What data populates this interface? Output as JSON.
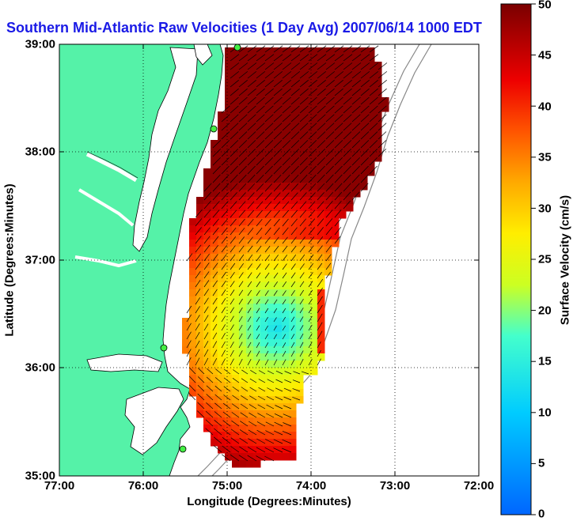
{
  "title": "Southern Mid-Atlantic Raw Velocities (1 Day Avg) 2007/06/14 1000 EDT",
  "axes": {
    "xlabel": "Longitude (Degrees:Minutes)",
    "ylabel": "Latitude (Degrees:Minutes)",
    "x_ticks": [
      "77:00",
      "76:00",
      "75:00",
      "74:00",
      "73:00",
      "72:00"
    ],
    "y_ticks": [
      "39:00",
      "38:00",
      "37:00",
      "36:00",
      "35:00"
    ]
  },
  "colorbar": {
    "label": "Surface Velocity (cm/s)",
    "ticks": [
      "50",
      "45",
      "40",
      "35",
      "30",
      "25",
      "20",
      "15",
      "10",
      "5",
      "0"
    ],
    "min": 0,
    "max": 50
  },
  "colors": {
    "land": "#55f2a8",
    "title": "#1a1ae6",
    "station": "#44ee44"
  }
}
